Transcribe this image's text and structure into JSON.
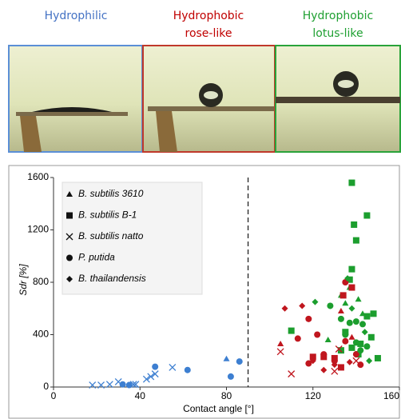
{
  "top": {
    "labels": [
      {
        "lines": [
          "Hydrophilic"
        ],
        "color": "#4472c4"
      },
      {
        "lines": [
          "Hydrophobic",
          "rose-like"
        ],
        "color": "#c00000"
      },
      {
        "lines": [
          "Hydrophobic",
          "lotus-like"
        ],
        "color": "#1fa032"
      }
    ]
  },
  "chart_data": {
    "type": "scatter",
    "x_label": "Contact angle [°]",
    "y_label": "Sdr [%]",
    "xlim": [
      0,
      160
    ],
    "ylim": [
      0,
      1600
    ],
    "xticks": [
      0,
      40,
      80,
      120,
      160
    ],
    "yticks": [
      0,
      400,
      800,
      1200,
      1600
    ],
    "vline": 90,
    "legend": "upper left",
    "series": [
      {
        "name": "B. subtilis 3610",
        "marker": "triangle",
        "x": [
          80,
          105,
          133,
          138,
          133,
          137,
          135,
          141,
          127,
          143
        ],
        "values": [
          215,
          330,
          580,
          380,
          700,
          760,
          640,
          670,
          360,
          560
        ],
        "colors": [
          "#3d7fd1",
          "#c0161e",
          "#c0161e",
          "#c0161e",
          "#1c9e2e",
          "#1c9e2e",
          "#1c9e2e",
          "#1c9e2e",
          "#1c9e2e",
          "#1c9e2e"
        ]
      },
      {
        "name": "B. subtilis B-1",
        "marker": "square",
        "x": [
          134,
          138,
          125,
          130,
          120,
          133,
          138,
          145,
          139,
          140,
          138,
          137,
          148,
          145,
          110,
          135,
          138,
          142,
          147,
          150,
          141,
          133
        ],
        "values": [
          700,
          760,
          230,
          220,
          230,
          150,
          1560,
          1310,
          1240,
          1120,
          900,
          820,
          560,
          540,
          430,
          420,
          300,
          330,
          380,
          220,
          250,
          280
        ],
        "colors": [
          "#c0161e",
          "#c0161e",
          "#c0161e",
          "#c0161e",
          "#c0161e",
          "#c0161e",
          "#1c9e2e",
          "#1c9e2e",
          "#1c9e2e",
          "#1c9e2e",
          "#1c9e2e",
          "#1c9e2e",
          "#1c9e2e",
          "#1c9e2e",
          "#1c9e2e",
          "#1c9e2e",
          "#1c9e2e",
          "#1c9e2e",
          "#1c9e2e",
          "#1c9e2e",
          "#1c9e2e",
          "#1c9e2e"
        ]
      },
      {
        "name": "B. subtilis natto",
        "marker": "cross",
        "x": [
          18,
          22,
          26,
          30,
          37,
          38,
          43,
          45,
          47,
          55,
          105,
          110,
          130,
          132,
          140
        ],
        "values": [
          15,
          15,
          20,
          40,
          20,
          20,
          60,
          80,
          100,
          150,
          270,
          100,
          120,
          290,
          200
        ],
        "colors": [
          "#3d7fd1",
          "#3d7fd1",
          "#3d7fd1",
          "#3d7fd1",
          "#3d7fd1",
          "#3d7fd1",
          "#3d7fd1",
          "#3d7fd1",
          "#3d7fd1",
          "#3d7fd1",
          "#c0161e",
          "#c0161e",
          "#c0161e",
          "#c0161e",
          "#c0161e"
        ]
      },
      {
        "name": "P. putida",
        "marker": "circle",
        "x": [
          32,
          35,
          47,
          62,
          82,
          86,
          113,
          118,
          122,
          125,
          130,
          135,
          135,
          140,
          142,
          118,
          128,
          133,
          137,
          140,
          143,
          135,
          140,
          145,
          142
        ],
        "values": [
          20,
          15,
          155,
          130,
          80,
          195,
          370,
          520,
          400,
          250,
          200,
          800,
          350,
          250,
          170,
          180,
          620,
          520,
          490,
          500,
          480,
          400,
          340,
          310,
          280
        ],
        "colors": [
          "#3d7fd1",
          "#3d7fd1",
          "#3d7fd1",
          "#3d7fd1",
          "#3d7fd1",
          "#3d7fd1",
          "#c0161e",
          "#c0161e",
          "#c0161e",
          "#c0161e",
          "#c0161e",
          "#c0161e",
          "#c0161e",
          "#c0161e",
          "#c0161e",
          "#c0161e",
          "#1c9e2e",
          "#1c9e2e",
          "#1c9e2e",
          "#1c9e2e",
          "#1c9e2e",
          "#1c9e2e",
          "#1c9e2e",
          "#1c9e2e",
          "#1c9e2e"
        ]
      },
      {
        "name": "B. thailandensis",
        "marker": "diamond",
        "x": [
          107,
          115,
          120,
          130,
          137,
          125,
          121,
          136,
          138,
          144,
          146
        ],
        "values": [
          600,
          620,
          200,
          170,
          190,
          130,
          650,
          830,
          600,
          420,
          200
        ],
        "colors": [
          "#c0161e",
          "#c0161e",
          "#c0161e",
          "#c0161e",
          "#c0161e",
          "#c0161e",
          "#1c9e2e",
          "#1c9e2e",
          "#1c9e2e",
          "#1c9e2e",
          "#1c9e2e"
        ]
      }
    ]
  }
}
